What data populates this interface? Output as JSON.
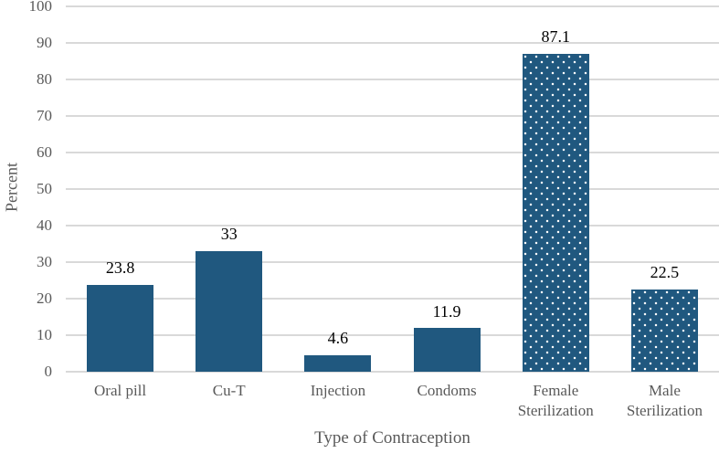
{
  "chart_data": {
    "type": "bar",
    "title": "",
    "categories": [
      "Oral pill",
      "Cu-T",
      "Injection",
      "Condoms",
      "Female Sterilization",
      "Male Sterilization"
    ],
    "values": [
      23.8,
      33,
      4.6,
      11.9,
      87.1,
      22.5
    ],
    "data_labels": [
      "23.8",
      "33",
      "4.6",
      "11.9",
      "87.1",
      "22.5"
    ],
    "bar_fill_styles": [
      "solid",
      "solid",
      "solid",
      "solid",
      "dotted",
      "dotted"
    ],
    "xlabel": "Type of Contraception",
    "ylabel": "Percent",
    "ylim": [
      0,
      100
    ],
    "ytick_step": 10,
    "ytick_labels": [
      "0",
      "10",
      "20",
      "30",
      "40",
      "50",
      "60",
      "70",
      "80",
      "90",
      "100"
    ],
    "grid": "horizontal",
    "legend": "none",
    "colors": {
      "bar": "#20587f",
      "pattern_dot": "#ffffff",
      "gridline": "#d9d9d9",
      "axis_text": "#595959",
      "data_label": "#000000",
      "background": "#ffffff"
    }
  }
}
